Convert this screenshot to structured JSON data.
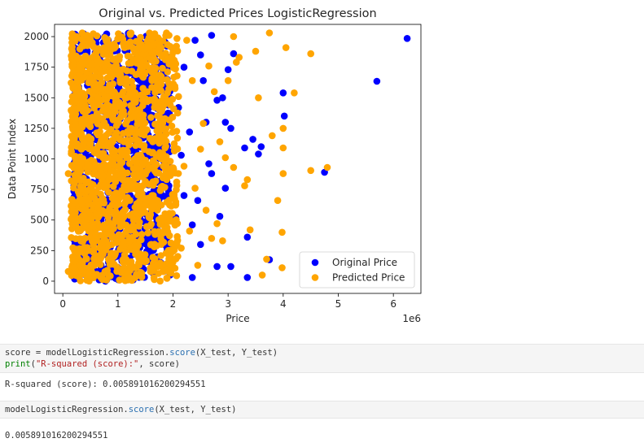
{
  "chart_data": {
    "type": "scatter",
    "title": "Original vs. Predicted Prices LogisticRegression",
    "xlabel": "Price",
    "ylabel": "Data Point Index",
    "x_offset_label": "1e6",
    "xlim": [
      -0.15,
      6.5
    ],
    "ylim": [
      -100,
      2100
    ],
    "x_ticks": [
      0,
      1,
      2,
      3,
      4,
      5,
      6
    ],
    "y_ticks": [
      0,
      250,
      500,
      750,
      1000,
      1250,
      1500,
      1750,
      2000
    ],
    "grid": false,
    "legend_position": "lower-right",
    "series": [
      {
        "name": "Original Price",
        "color": "#0000ff",
        "points": [
          [
            6.25,
            1985
          ],
          [
            5.7,
            1635
          ],
          [
            4.75,
            890
          ],
          [
            4.0,
            1540
          ],
          [
            4.02,
            1350
          ],
          [
            3.75,
            175
          ],
          [
            3.6,
            1100
          ],
          [
            3.55,
            1040
          ],
          [
            3.45,
            1160
          ],
          [
            3.3,
            1090
          ],
          [
            3.1,
            1860
          ],
          [
            3.05,
            1250
          ],
          [
            3.0,
            1730
          ],
          [
            2.95,
            1300
          ],
          [
            2.9,
            1500
          ],
          [
            2.95,
            760
          ],
          [
            2.85,
            530
          ],
          [
            2.8,
            120
          ],
          [
            2.7,
            880
          ],
          [
            2.65,
            960
          ],
          [
            2.6,
            1300
          ],
          [
            2.55,
            1640
          ],
          [
            2.5,
            1850
          ],
          [
            2.5,
            300
          ],
          [
            2.45,
            660
          ],
          [
            2.4,
            1970
          ],
          [
            2.35,
            460
          ],
          [
            2.35,
            30
          ],
          [
            2.3,
            1220
          ],
          [
            2.2,
            1750
          ],
          [
            2.2,
            700
          ],
          [
            2.15,
            1030
          ],
          [
            2.1,
            1420
          ],
          [
            2.05,
            520
          ],
          [
            2.0,
            1900
          ],
          [
            3.35,
            360
          ],
          [
            3.35,
            30
          ],
          [
            3.05,
            120
          ],
          [
            2.8,
            1480
          ],
          [
            2.7,
            2010
          ]
        ],
        "cluster": {
          "x_min": 0.2,
          "x_max": 1.95,
          "y_min": 0,
          "y_max": 2030,
          "count": 1100,
          "seed": 17
        }
      },
      {
        "name": "Predicted Price",
        "color": "#ffa500",
        "points": [
          [
            4.8,
            930
          ],
          [
            4.5,
            905
          ],
          [
            4.5,
            1860
          ],
          [
            4.2,
            1540
          ],
          [
            4.05,
            1910
          ],
          [
            4.0,
            1250
          ],
          [
            4.0,
            1090
          ],
          [
            4.0,
            880
          ],
          [
            3.98,
            400
          ],
          [
            3.98,
            110
          ],
          [
            3.9,
            660
          ],
          [
            3.8,
            1190
          ],
          [
            3.7,
            180
          ],
          [
            3.62,
            50
          ],
          [
            3.55,
            1500
          ],
          [
            3.5,
            1880
          ],
          [
            3.4,
            420
          ],
          [
            3.35,
            830
          ],
          [
            3.3,
            780
          ],
          [
            3.2,
            1830
          ],
          [
            3.15,
            1790
          ],
          [
            3.1,
            2000
          ],
          [
            3.0,
            1640
          ],
          [
            2.95,
            1010
          ],
          [
            2.9,
            330
          ],
          [
            2.85,
            1140
          ],
          [
            2.75,
            1550
          ],
          [
            2.7,
            350
          ],
          [
            2.65,
            1760
          ],
          [
            2.6,
            580
          ],
          [
            2.55,
            1290
          ],
          [
            2.5,
            1080
          ],
          [
            2.45,
            130
          ],
          [
            2.4,
            760
          ],
          [
            2.35,
            1640
          ],
          [
            2.3,
            410
          ],
          [
            2.25,
            1970
          ],
          [
            2.2,
            940
          ],
          [
            2.15,
            270
          ],
          [
            2.1,
            1510
          ],
          [
            2.05,
            630
          ],
          [
            3.75,
            2030
          ],
          [
            3.1,
            930
          ],
          [
            2.8,
            470
          ],
          [
            0.1,
            880
          ],
          [
            0.1,
            80
          ]
        ],
        "cluster": {
          "x_min": 0.15,
          "x_max": 2.1,
          "y_min": 0,
          "y_max": 2030,
          "count": 1500,
          "seed": 91
        }
      }
    ]
  },
  "cells": [
    {
      "kind": "code",
      "lines": [
        [
          {
            "t": "score = modelLogisticRegression."
          },
          {
            "t": "score",
            "c": "tok-fn"
          },
          {
            "t": "(X_test, Y_test)"
          }
        ],
        [
          {
            "t": "print",
            "c": "tok-kw"
          },
          {
            "t": "("
          },
          {
            "t": "\"R-squared (score):\"",
            "c": "tok-str"
          },
          {
            "t": ", score)"
          }
        ]
      ]
    },
    {
      "kind": "output",
      "text": "R-squared (score): 0.005891016200294551"
    },
    {
      "kind": "code",
      "lines": [
        [
          {
            "t": "modelLogisticRegression."
          },
          {
            "t": "score",
            "c": "tok-fn"
          },
          {
            "t": "(X_test, Y_test)"
          }
        ]
      ]
    },
    {
      "kind": "output",
      "text": "0.005891016200294551"
    }
  ]
}
